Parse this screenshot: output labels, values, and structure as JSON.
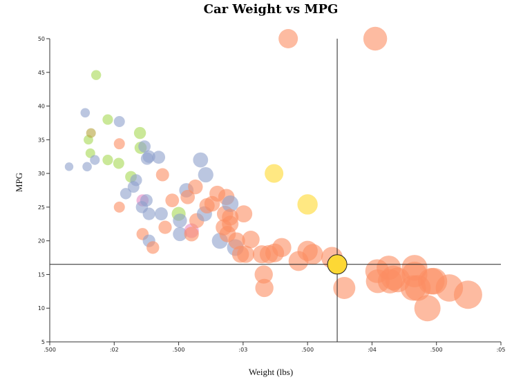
{
  "chart_data": {
    "type": "scatter",
    "title": "Car Weight vs MPG",
    "xlabel": "Weight (lbs)",
    "ylabel": "MPG",
    "xlim": [
      1500,
      5000
    ],
    "ylim": [
      5,
      50
    ],
    "x_ticks": [
      {
        "value": 1500,
        "label": ".500"
      },
      {
        "value": 2000,
        "label": ":02"
      },
      {
        "value": 2500,
        "label": ".500"
      },
      {
        "value": 3000,
        "label": ":03"
      },
      {
        "value": 3500,
        "label": ".500"
      },
      {
        "value": 4000,
        "label": ":04"
      },
      {
        "value": 4500,
        "label": ".500"
      },
      {
        "value": 5000,
        "label": ":05"
      }
    ],
    "y_ticks": [
      5,
      10,
      15,
      20,
      25,
      30,
      35,
      40,
      45,
      50
    ],
    "crosshair": {
      "x": 3730,
      "y": 16.5
    },
    "highlight_color": "#fdd835",
    "series_colors": {
      "orange": "#fc8d62",
      "blue": "#8da0cb",
      "green": "#a6d854",
      "pink": "#e78ac3",
      "yellow": "#ffd92f",
      "olive": "#b5a33c"
    },
    "points": [
      {
        "x": 1650,
        "y": 31,
        "c": "blue"
      },
      {
        "x": 1775,
        "y": 39,
        "c": "blue"
      },
      {
        "x": 1800,
        "y": 35,
        "c": "green"
      },
      {
        "x": 1790,
        "y": 31,
        "c": "blue"
      },
      {
        "x": 1815,
        "y": 33,
        "c": "green"
      },
      {
        "x": 1820,
        "y": 36,
        "c": "olive"
      },
      {
        "x": 1850,
        "y": 32,
        "c": "blue"
      },
      {
        "x": 1860,
        "y": 44.6,
        "c": "green"
      },
      {
        "x": 1950,
        "y": 38,
        "c": "green"
      },
      {
        "x": 1950,
        "y": 32,
        "c": "green"
      },
      {
        "x": 2040,
        "y": 37.7,
        "c": "blue"
      },
      {
        "x": 2035,
        "y": 31.5,
        "c": "green"
      },
      {
        "x": 2040,
        "y": 34.4,
        "c": "orange"
      },
      {
        "x": 2040,
        "y": 25,
        "c": "orange"
      },
      {
        "x": 2090,
        "y": 27,
        "c": "blue"
      },
      {
        "x": 2130,
        "y": 29.5,
        "c": "green"
      },
      {
        "x": 2150,
        "y": 28,
        "c": "blue"
      },
      {
        "x": 2170,
        "y": 29,
        "c": "blue"
      },
      {
        "x": 2200,
        "y": 36,
        "c": "green"
      },
      {
        "x": 2205,
        "y": 33.8,
        "c": "green"
      },
      {
        "x": 2220,
        "y": 26,
        "c": "pink"
      },
      {
        "x": 2215,
        "y": 25,
        "c": "blue"
      },
      {
        "x": 2220,
        "y": 21,
        "c": "orange"
      },
      {
        "x": 2235,
        "y": 34,
        "c": "blue"
      },
      {
        "x": 2250,
        "y": 26,
        "c": "blue"
      },
      {
        "x": 2255,
        "y": 32.2,
        "c": "blue"
      },
      {
        "x": 2270,
        "y": 32.5,
        "c": "blue"
      },
      {
        "x": 2270,
        "y": 24,
        "c": "blue"
      },
      {
        "x": 2270,
        "y": 20,
        "c": "blue"
      },
      {
        "x": 2300,
        "y": 19,
        "c": "orange"
      },
      {
        "x": 2345,
        "y": 32.4,
        "c": "blue"
      },
      {
        "x": 2365,
        "y": 24,
        "c": "blue"
      },
      {
        "x": 2375,
        "y": 29.8,
        "c": "orange"
      },
      {
        "x": 2395,
        "y": 22,
        "c": "orange"
      },
      {
        "x": 2450,
        "y": 26,
        "c": "orange"
      },
      {
        "x": 2500,
        "y": 24,
        "c": "green"
      },
      {
        "x": 2510,
        "y": 23,
        "c": "blue"
      },
      {
        "x": 2510,
        "y": 21,
        "c": "blue"
      },
      {
        "x": 2560,
        "y": 27.5,
        "c": "blue"
      },
      {
        "x": 2570,
        "y": 26.5,
        "c": "orange"
      },
      {
        "x": 2600,
        "y": 21.5,
        "c": "pink"
      },
      {
        "x": 2600,
        "y": 21,
        "c": "orange"
      },
      {
        "x": 2630,
        "y": 28,
        "c": "orange"
      },
      {
        "x": 2640,
        "y": 23,
        "c": "orange"
      },
      {
        "x": 2670,
        "y": 32,
        "c": "blue"
      },
      {
        "x": 2700,
        "y": 24,
        "c": "blue"
      },
      {
        "x": 2710,
        "y": 29.8,
        "c": "blue"
      },
      {
        "x": 2720,
        "y": 25.2,
        "c": "orange"
      },
      {
        "x": 2760,
        "y": 25.5,
        "c": "orange"
      },
      {
        "x": 2800,
        "y": 27,
        "c": "orange"
      },
      {
        "x": 2820,
        "y": 20,
        "c": "blue"
      },
      {
        "x": 2850,
        "y": 22,
        "c": "orange"
      },
      {
        "x": 2860,
        "y": 24,
        "c": "orange"
      },
      {
        "x": 2870,
        "y": 26.5,
        "c": "orange"
      },
      {
        "x": 2880,
        "y": 21,
        "c": "orange"
      },
      {
        "x": 2900,
        "y": 25.5,
        "c": "blue"
      },
      {
        "x": 2900,
        "y": 23.5,
        "c": "orange"
      },
      {
        "x": 2900,
        "y": 22.5,
        "c": "orange"
      },
      {
        "x": 2940,
        "y": 19,
        "c": "blue"
      },
      {
        "x": 2950,
        "y": 20,
        "c": "orange"
      },
      {
        "x": 2980,
        "y": 18,
        "c": "orange"
      },
      {
        "x": 3005,
        "y": 24,
        "c": "orange"
      },
      {
        "x": 3020,
        "y": 18,
        "c": "orange"
      },
      {
        "x": 3060,
        "y": 20.2,
        "c": "orange"
      },
      {
        "x": 3145,
        "y": 18,
        "c": "orange"
      },
      {
        "x": 3160,
        "y": 15,
        "c": "orange"
      },
      {
        "x": 3165,
        "y": 13,
        "c": "orange"
      },
      {
        "x": 3200,
        "y": 18,
        "c": "orange"
      },
      {
        "x": 3245,
        "y": 18.2,
        "c": "orange"
      },
      {
        "x": 3240,
        "y": 30,
        "c": "yellow"
      },
      {
        "x": 3300,
        "y": 19,
        "c": "orange"
      },
      {
        "x": 3350,
        "y": 50,
        "c": "orange"
      },
      {
        "x": 3430,
        "y": 17,
        "c": "orange"
      },
      {
        "x": 3500,
        "y": 18.5,
        "c": "orange"
      },
      {
        "x": 3500,
        "y": 25.4,
        "c": "yellow"
      },
      {
        "x": 3540,
        "y": 18,
        "c": "orange"
      },
      {
        "x": 3690,
        "y": 17.5,
        "c": "orange"
      },
      {
        "x": 3785,
        "y": 13,
        "c": "orange"
      },
      {
        "x": 4025,
        "y": 50,
        "c": "orange"
      },
      {
        "x": 4040,
        "y": 15.5,
        "c": "orange"
      },
      {
        "x": 4045,
        "y": 14,
        "c": "orange"
      },
      {
        "x": 4130,
        "y": 16,
        "c": "orange"
      },
      {
        "x": 4140,
        "y": 14,
        "c": "orange"
      },
      {
        "x": 4165,
        "y": 14.5,
        "c": "orange"
      },
      {
        "x": 4200,
        "y": 14.2,
        "c": "orange"
      },
      {
        "x": 4320,
        "y": 13,
        "c": "orange"
      },
      {
        "x": 4330,
        "y": 15,
        "c": "orange"
      },
      {
        "x": 4330,
        "y": 16,
        "c": "orange"
      },
      {
        "x": 4355,
        "y": 13,
        "c": "orange"
      },
      {
        "x": 4430,
        "y": 10,
        "c": "orange"
      },
      {
        "x": 4460,
        "y": 14,
        "c": "orange"
      },
      {
        "x": 4480,
        "y": 14,
        "c": "orange"
      },
      {
        "x": 4600,
        "y": 13,
        "c": "orange"
      },
      {
        "x": 4745,
        "y": 12,
        "c": "orange"
      }
    ]
  }
}
